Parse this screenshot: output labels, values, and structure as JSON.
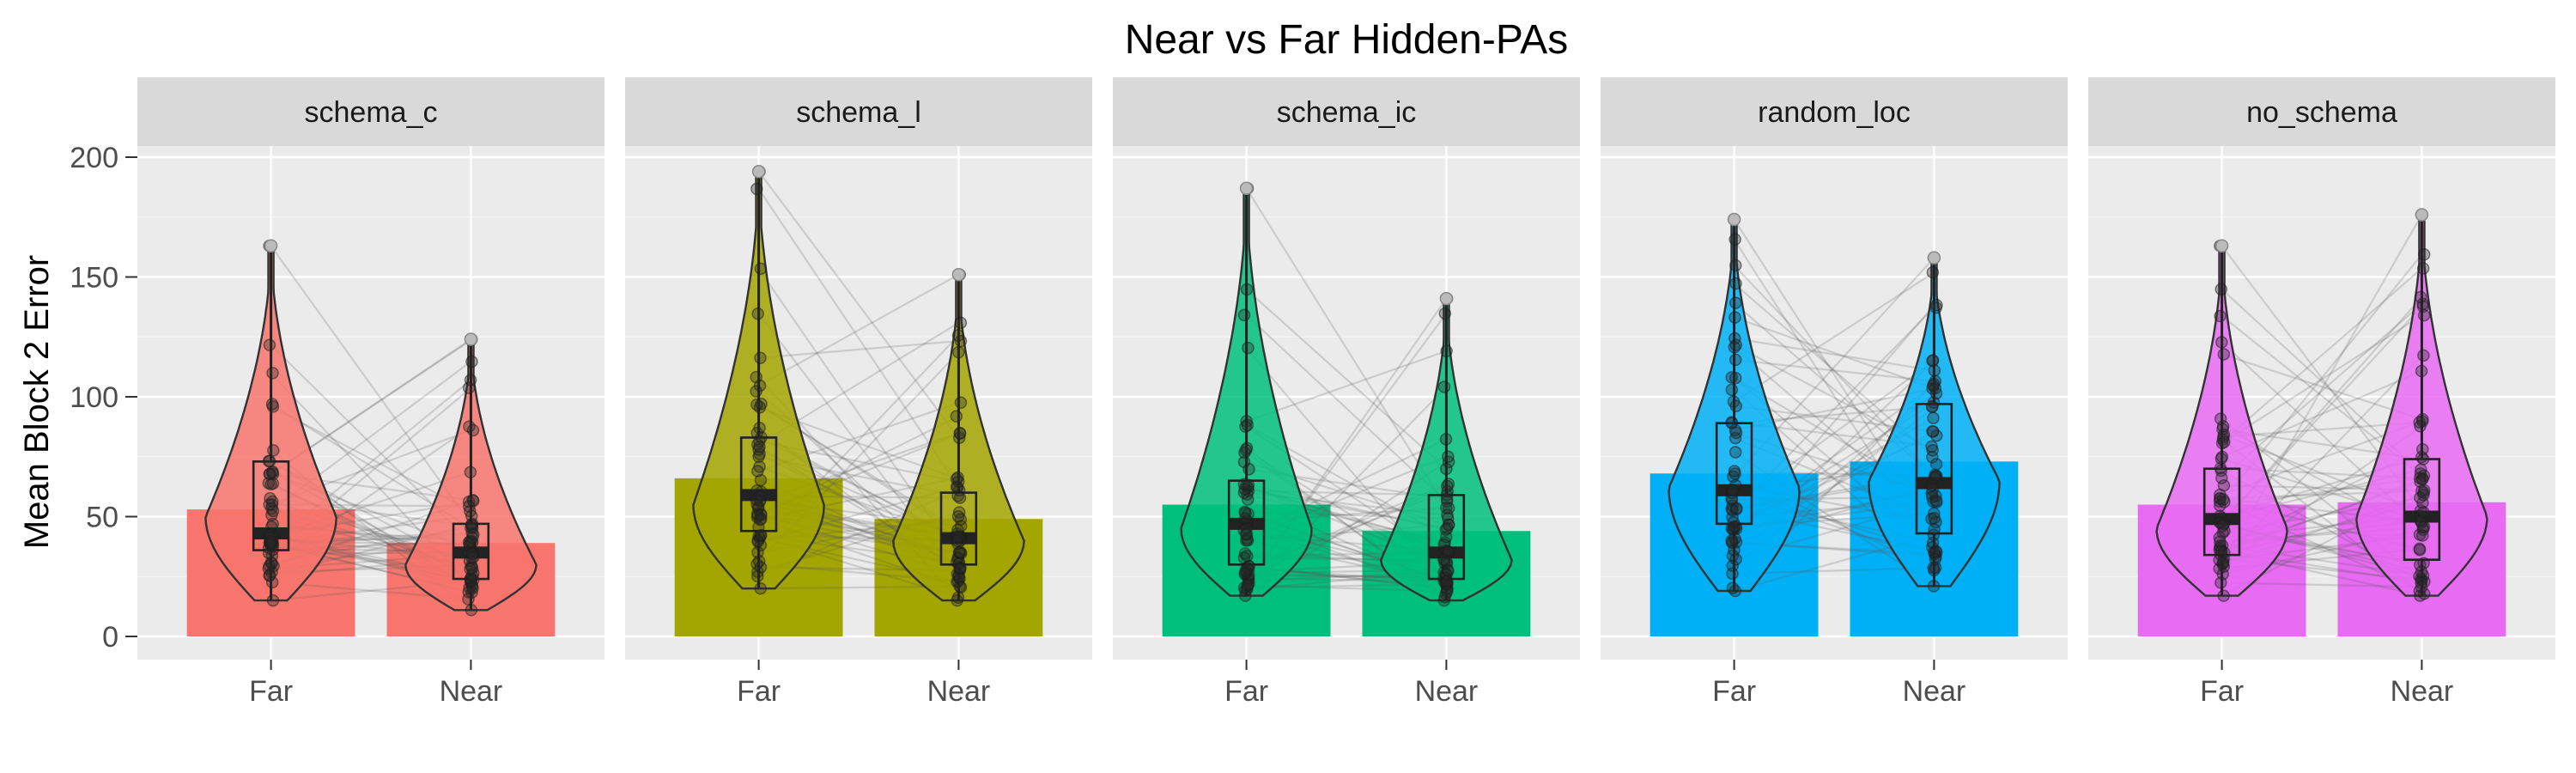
{
  "chart_data": {
    "type": "bar",
    "title": "Near vs Far Hidden-PAs",
    "ylabel": "Mean Block 2 Error",
    "xlabel": "",
    "ylim": [
      0,
      225
    ],
    "yticks": [
      0,
      50,
      100,
      150,
      200
    ],
    "categories": [
      "Far",
      "Near"
    ],
    "grid": true,
    "panels": [
      {
        "name": "schema_c",
        "color": "#F8766D",
        "means": [
          53,
          39
        ],
        "violins": [
          {
            "min": 15,
            "q1": 36,
            "median": 43,
            "q3": 73,
            "max": 163,
            "mode": 50
          },
          {
            "min": 11,
            "q1": 24,
            "median": 35,
            "q3": 47,
            "max": 124,
            "mode": 30
          }
        ]
      },
      {
        "name": "schema_l",
        "color": "#A3A500",
        "means": [
          66,
          49
        ],
        "violins": [
          {
            "min": 20,
            "q1": 44,
            "median": 59,
            "q3": 83,
            "max": 194,
            "mode": 55
          },
          {
            "min": 15,
            "q1": 30,
            "median": 41,
            "q3": 60,
            "max": 151,
            "mode": 40
          }
        ]
      },
      {
        "name": "schema_ic",
        "color": "#00BF7D",
        "means": [
          55,
          44
        ],
        "violins": [
          {
            "min": 17,
            "q1": 30,
            "median": 47,
            "q3": 65,
            "max": 187,
            "mode": 45
          },
          {
            "min": 15,
            "q1": 24,
            "median": 35,
            "q3": 59,
            "max": 141,
            "mode": 32
          }
        ]
      },
      {
        "name": "random_loc",
        "color": "#00B0F6",
        "means": [
          68,
          73
        ],
        "violins": [
          {
            "min": 19,
            "q1": 47,
            "median": 61,
            "q3": 89,
            "max": 174,
            "mode": 62
          },
          {
            "min": 21,
            "q1": 43,
            "median": 64,
            "q3": 97,
            "max": 158,
            "mode": 65
          }
        ]
      },
      {
        "name": "no_schema",
        "color": "#E76BF3",
        "means": [
          55,
          56
        ],
        "violins": [
          {
            "min": 17,
            "q1": 34,
            "median": 49,
            "q3": 70,
            "max": 163,
            "mode": 45
          },
          {
            "min": 17,
            "q1": 32,
            "median": 50,
            "q3": 74,
            "max": 176,
            "mode": 50
          }
        ]
      }
    ]
  }
}
